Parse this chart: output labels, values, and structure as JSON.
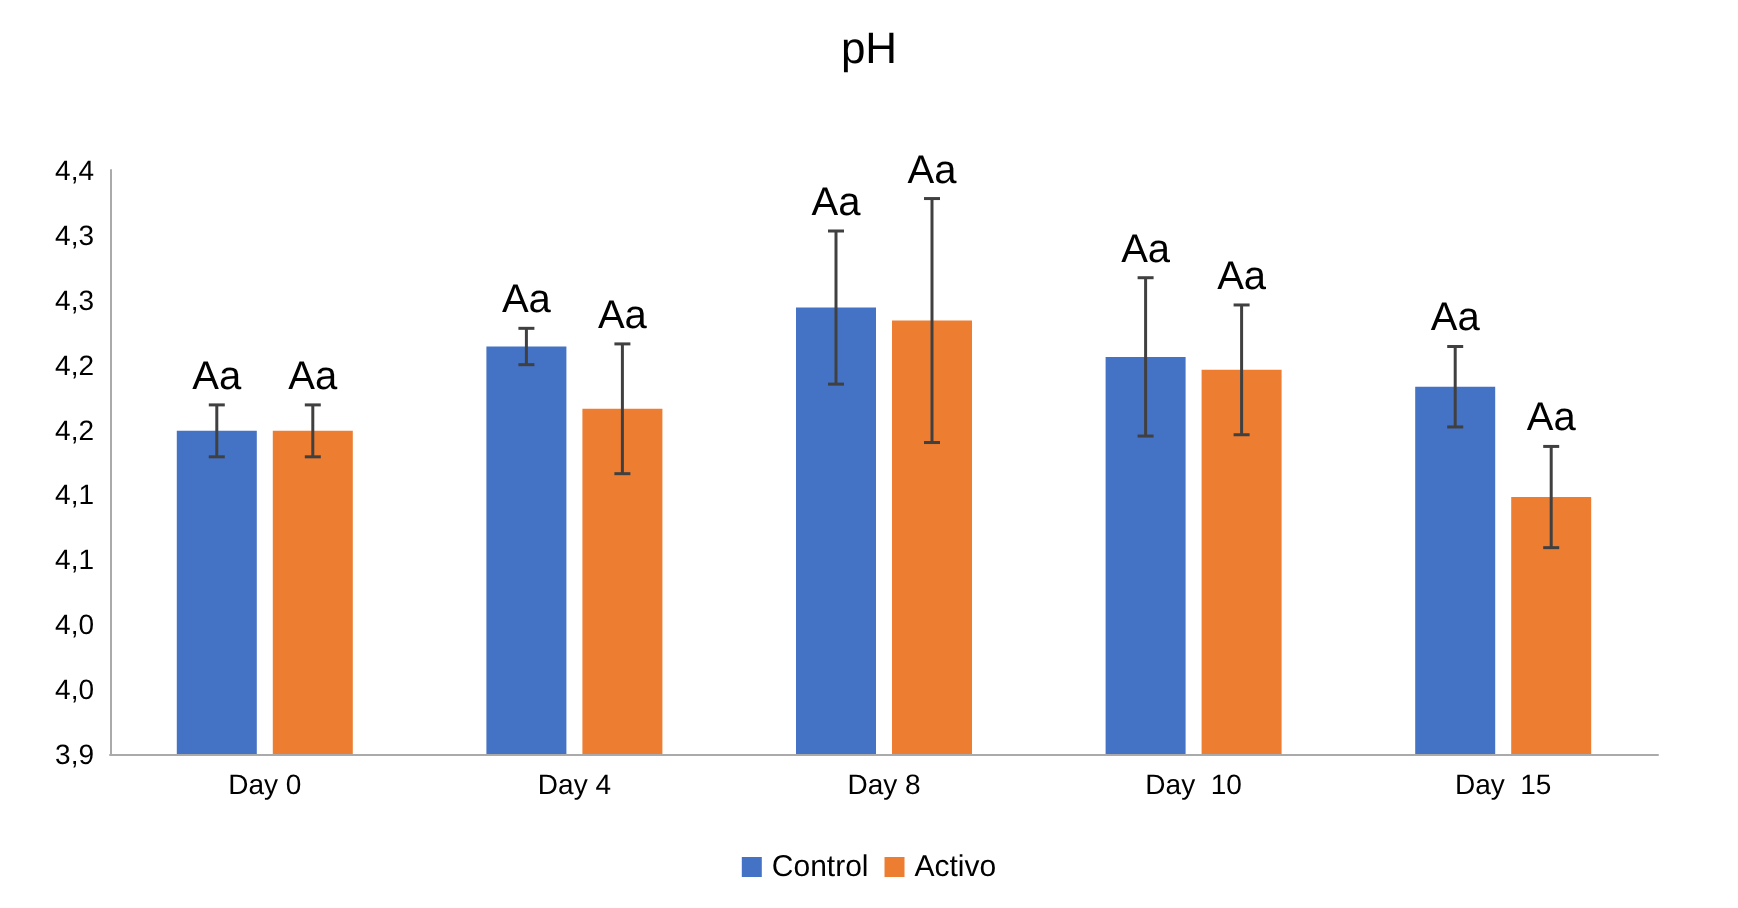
{
  "chart_data": {
    "type": "bar",
    "title": "pH",
    "categories": [
      "Day 0",
      "Day 4",
      "Day 8",
      "Day  10",
      "Day  15"
    ],
    "series": [
      {
        "name": "Control",
        "color": "#4472c4",
        "values": [
          4.149,
          4.214,
          4.244,
          4.206,
          4.183
        ],
        "errors": [
          0.02,
          0.014,
          0.059,
          0.061,
          0.031
        ],
        "value_labels": [
          "Aa",
          "Aa",
          "Aa",
          "Aa",
          "Aa"
        ]
      },
      {
        "name": "Activo",
        "color": "#ed7d31",
        "values": [
          4.149,
          4.166,
          4.234,
          4.196,
          4.098
        ],
        "errors": [
          0.02,
          0.05,
          0.094,
          0.05,
          0.039
        ],
        "value_labels": [
          "Aa",
          "Aa",
          "Aa",
          "Aa",
          "Aa"
        ]
      }
    ],
    "ylim": [
      3.9,
      4.35
    ],
    "yticks": [
      {
        "value": 3.9,
        "label": "3,9"
      },
      {
        "value": 3.95,
        "label": "4,0"
      },
      {
        "value": 4.0,
        "label": "4,0"
      },
      {
        "value": 4.05,
        "label": "4,1"
      },
      {
        "value": 4.1,
        "label": "4,1"
      },
      {
        "value": 4.15,
        "label": "4,2"
      },
      {
        "value": 4.2,
        "label": "4,2"
      },
      {
        "value": 4.25,
        "label": "4,3"
      },
      {
        "value": 4.3,
        "label": "4,3"
      },
      {
        "value": 4.35,
        "label": "4,4"
      }
    ],
    "grid": false,
    "legend": "bottom"
  }
}
